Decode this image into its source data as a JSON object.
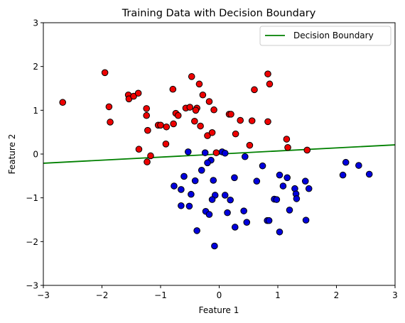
{
  "chart_data": {
    "type": "scatter",
    "title": "Training Data with Decision Boundary",
    "xlabel": "Feature 1",
    "ylabel": "Feature 2",
    "xlim": [
      -3,
      3
    ],
    "ylim": [
      -3,
      3
    ],
    "xticks": [
      "−3",
      "−2",
      "−1",
      "0",
      "1",
      "2",
      "3"
    ],
    "yticks": [
      "−3",
      "−2",
      "−1",
      "0",
      "1",
      "2",
      "3"
    ],
    "xtick_values": [
      -3,
      -2,
      -1,
      0,
      1,
      2,
      3
    ],
    "ytick_values": [
      -3,
      -2,
      -1,
      0,
      1,
      2,
      3
    ],
    "grid": false,
    "legend": {
      "placement": "top-right",
      "entries": [
        "Decision Boundary"
      ]
    },
    "series": [
      {
        "color": "#ee0000",
        "edgecolor": "#000000",
        "points": [
          [
            -2.67,
            1.18
          ],
          [
            -1.95,
            1.86
          ],
          [
            -1.88,
            1.08
          ],
          [
            -1.86,
            0.73
          ],
          [
            -1.55,
            1.35
          ],
          [
            -1.54,
            1.26
          ],
          [
            -1.46,
            1.32
          ],
          [
            -1.38,
            1.39
          ],
          [
            -1.37,
            0.11
          ],
          [
            -1.24,
            1.04
          ],
          [
            -1.24,
            0.88
          ],
          [
            -1.22,
            0.54
          ],
          [
            -1.23,
            -0.18
          ],
          [
            -1.17,
            -0.04
          ],
          [
            -1.04,
            0.66
          ],
          [
            -1.0,
            0.66
          ],
          [
            -0.9,
            0.62
          ],
          [
            -0.91,
            0.23
          ],
          [
            -0.79,
            1.48
          ],
          [
            -0.78,
            0.69
          ],
          [
            -0.74,
            0.93
          ],
          [
            -0.7,
            0.88
          ],
          [
            -0.57,
            1.05
          ],
          [
            -0.5,
            1.07
          ],
          [
            -0.47,
            1.77
          ],
          [
            -0.42,
            0.75
          ],
          [
            -0.38,
            1.05
          ],
          [
            -0.4,
            1.0
          ],
          [
            -0.34,
            1.6
          ],
          [
            -0.32,
            0.64
          ],
          [
            -0.28,
            1.35
          ],
          [
            -0.2,
            0.42
          ],
          [
            -0.17,
            1.2
          ],
          [
            -0.12,
            0.49
          ],
          [
            -0.09,
            1.01
          ],
          [
            -0.05,
            0.03
          ],
          [
            0.17,
            0.91
          ],
          [
            0.2,
            0.91
          ],
          [
            0.28,
            0.46
          ],
          [
            0.36,
            0.77
          ],
          [
            0.52,
            0.2
          ],
          [
            0.56,
            0.76
          ],
          [
            0.6,
            1.47
          ],
          [
            0.83,
            0.74
          ],
          [
            0.83,
            1.83
          ],
          [
            0.86,
            1.6
          ],
          [
            1.15,
            0.34
          ],
          [
            1.17,
            0.15
          ],
          [
            1.5,
            0.09
          ]
        ]
      },
      {
        "color": "#0000dd",
        "edgecolor": "#000000",
        "points": [
          [
            -0.53,
            0.05
          ],
          [
            -0.24,
            0.03
          ],
          [
            0.05,
            0.05
          ],
          [
            0.1,
            0.02
          ],
          [
            -0.14,
            -0.14
          ],
          [
            -0.2,
            -0.2
          ],
          [
            0.44,
            -0.06
          ],
          [
            -0.3,
            -0.37
          ],
          [
            -0.6,
            -0.51
          ],
          [
            -0.41,
            -0.61
          ],
          [
            -0.1,
            -0.6
          ],
          [
            0.26,
            -0.54
          ],
          [
            -0.77,
            -0.73
          ],
          [
            -0.65,
            -0.81
          ],
          [
            -0.48,
            -0.92
          ],
          [
            -0.07,
            -0.94
          ],
          [
            0.1,
            -0.94
          ],
          [
            -0.12,
            -1.04
          ],
          [
            0.19,
            -1.05
          ],
          [
            -0.65,
            -1.18
          ],
          [
            -0.51,
            -1.19
          ],
          [
            -0.23,
            -1.31
          ],
          [
            -0.17,
            -1.38
          ],
          [
            0.14,
            -1.34
          ],
          [
            0.42,
            -1.3
          ],
          [
            0.47,
            -1.56
          ],
          [
            0.27,
            -1.67
          ],
          [
            0.64,
            -0.62
          ],
          [
            0.74,
            -0.27
          ],
          [
            0.82,
            -1.52
          ],
          [
            0.85,
            -1.52
          ],
          [
            1.03,
            -0.48
          ],
          [
            1.09,
            -0.73
          ],
          [
            0.94,
            -1.03
          ],
          [
            0.98,
            -1.04
          ],
          [
            1.03,
            -1.78
          ],
          [
            1.16,
            -0.54
          ],
          [
            1.2,
            -1.28
          ],
          [
            1.29,
            -0.79
          ],
          [
            1.31,
            -0.91
          ],
          [
            1.32,
            -1.02
          ],
          [
            1.47,
            -0.62
          ],
          [
            1.48,
            -1.51
          ],
          [
            1.53,
            -0.79
          ],
          [
            -0.38,
            -1.75
          ],
          [
            -0.08,
            -2.1
          ],
          [
            2.11,
            -0.48
          ],
          [
            2.16,
            -0.19
          ],
          [
            2.38,
            -0.26
          ],
          [
            2.56,
            -0.46
          ]
        ]
      }
    ],
    "lines": [
      {
        "name": "Decision Boundary",
        "color": "#008000",
        "x": [
          -3,
          3
        ],
        "y": [
          -0.21,
          0.21
        ]
      }
    ]
  }
}
